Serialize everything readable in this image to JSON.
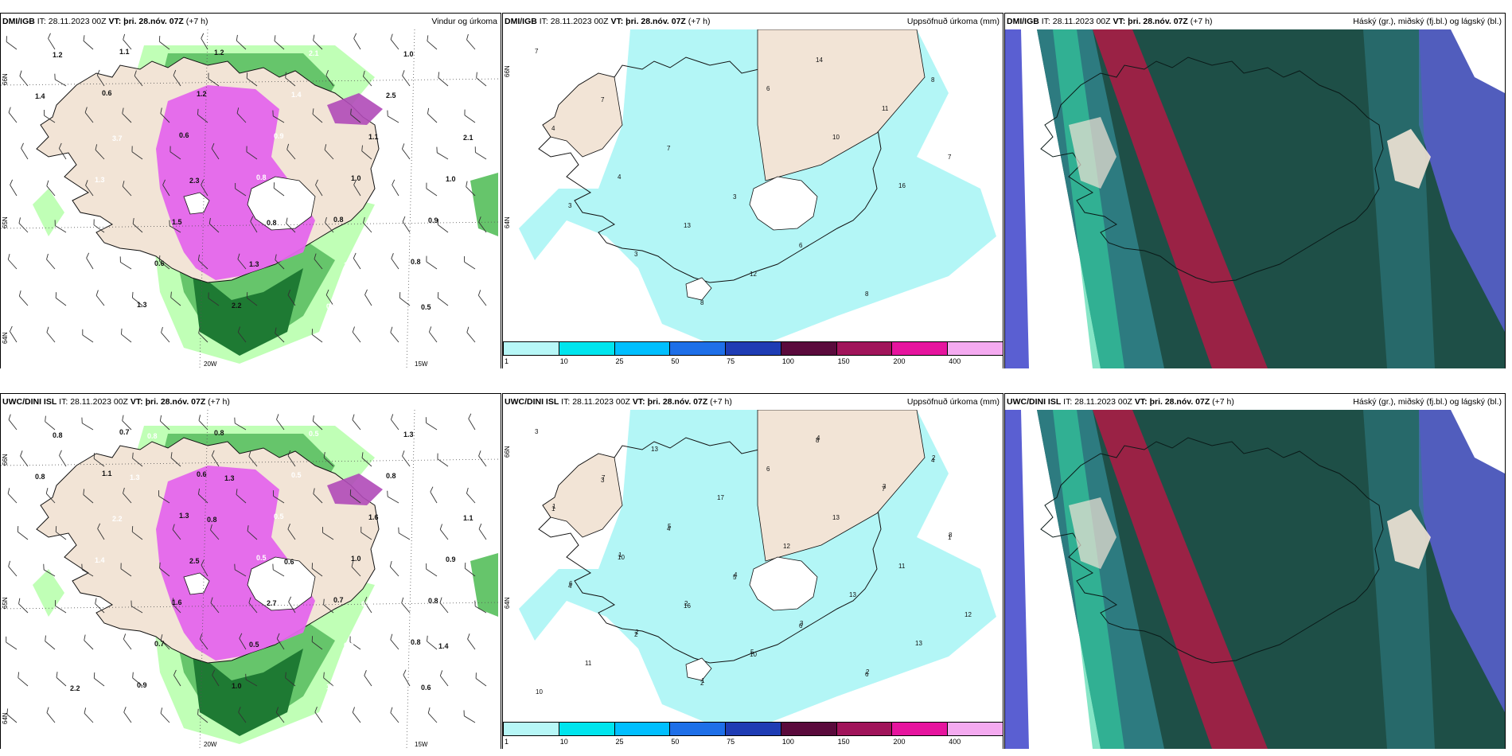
{
  "colors": {
    "land": "#f2e4d6",
    "coast": "#111111",
    "precip_light": "#c0ffb6",
    "precip_mid": "#66c56b",
    "precip_dark": "#1e7a33",
    "precip_magenta": "#e466ec",
    "accum_fill": "#b3f6f6",
    "cloud_dark": "#1e4f47",
    "cloud_teal": "#2f7f86",
    "cloud_red": "#b01a45",
    "cloud_blue": "#5a5fd2",
    "cloud_green": "#33d4a0"
  },
  "panels": [
    {
      "source": "DMI/IGB",
      "it_label": "IT:",
      "it_value": "28.11.2023 00Z",
      "vt_label": "VT:",
      "vt_value": "þri. 28.nóv. 07Z",
      "lead": "(+7 h)",
      "title_right": "Vindur og úrkoma",
      "type": "wind",
      "lat_labels": [
        "66N",
        "65N",
        "64N"
      ],
      "lon_labels": [
        "20W",
        "15W"
      ],
      "values": [
        "0.7",
        "0.6",
        "0.6",
        "0.8",
        "0.8",
        "0.8",
        "1.1",
        "1.1",
        "1.2",
        "0.9",
        "1.0",
        "0.9",
        "0.9",
        "1.3",
        "1.2",
        "1.4",
        "1.1",
        "1.0",
        "0.8",
        "0.6",
        "2.2",
        "2.1",
        "2.5",
        "2.1",
        "1.3",
        "1.5",
        "1.3",
        "0.9",
        "1.0",
        "1.4",
        "3.7",
        "2.3",
        "0.8",
        "1.2",
        "0.5",
        "1.2"
      ]
    },
    {
      "source": "DMI/IGB",
      "it_label": "IT:",
      "it_value": "28.11.2023 00Z",
      "vt_label": "VT:",
      "vt_value": "þri. 28.nóv. 07Z",
      "lead": "(+7 h)",
      "title_right": "Uppsöfnuð úrkoma (mm)",
      "type": "accum",
      "lat_labels": [
        "66N",
        "64N"
      ],
      "values": [
        "7",
        "7",
        "7",
        "3",
        "6",
        "8",
        "8",
        "4",
        "4",
        "13",
        "12",
        "14",
        "11",
        "7",
        "3",
        "3",
        "8",
        "6",
        "10",
        "16"
      ],
      "colorbar": {
        "colors": [
          "#b7f7f7",
          "#00e5ee",
          "#00bfff",
          "#1e6fe8",
          "#1e3cb4",
          "#5a0a3c",
          "#a0145a",
          "#e6149e",
          "#f4aaf0"
        ],
        "ticks": [
          "1",
          "10",
          "25",
          "50",
          "75",
          "100",
          "150",
          "200",
          "400"
        ]
      }
    },
    {
      "source": "DMI/IGB",
      "it_label": "IT:",
      "it_value": "28.11.2023 00Z",
      "vt_label": "VT:",
      "vt_value": "þri. 28.nóv. 07Z",
      "lead": "(+7 h)",
      "title_right": "Háský (gr.), miðský (fj.bl.) og lágský (bl.)",
      "type": "cloud"
    },
    {
      "source": "UWC/DINI ISL",
      "it_label": "IT:",
      "it_value": "28.11.2023 00Z",
      "vt_label": "VT:",
      "vt_value": "þri. 28.nóv. 07Z",
      "lead": "(+7 h)",
      "title_right": "",
      "type": "wind",
      "lat_labels": [
        "66N",
        "65N",
        "64N"
      ],
      "lon_labels": [
        "20W",
        "15W"
      ],
      "values": [
        "0.8",
        "1.1",
        "1.3",
        "0.5",
        "0.7",
        "0.8",
        "0.9",
        "0.7",
        "0.6",
        "0.5",
        "1.0",
        "0.8",
        "0.6",
        "0.9",
        "0.8",
        "0.5",
        "1.6",
        "0.9",
        "1.3",
        "0.7",
        "1.0",
        "0.5",
        "0.8",
        "1.1",
        "1.4",
        "1.6",
        "0.5",
        "1.2",
        "1.3",
        "0.8",
        "2.2",
        "2.5",
        "2.7",
        "0.9",
        "0.6",
        "0.8",
        "1.3",
        "0.8",
        "0.6",
        "0.6",
        "1.4",
        "2.2",
        "0.8",
        "1.3"
      ]
    },
    {
      "source": "UWC/DINI ISL",
      "it_label": "IT:",
      "it_value": "28.11.2023 00Z",
      "vt_label": "VT:",
      "vt_value": "þri. 28.nóv. 07Z",
      "lead": "(+7 h)",
      "title_right": "Uppsöfnuð úrkoma (mm)",
      "type": "accum",
      "lat_labels": [
        "66N",
        "64N"
      ],
      "values": [
        "3",
        "3",
        "4",
        "5",
        "6",
        "6",
        "4",
        "1",
        "10",
        "16",
        "10",
        "8",
        "7",
        "1",
        "4",
        "2",
        "2",
        "6",
        "13",
        "11",
        "12",
        "11",
        "13",
        "17",
        "12",
        "13",
        "13",
        "10",
        "7",
        "5",
        "4",
        "3",
        "2",
        "2",
        "1",
        "1",
        "2",
        "5",
        "4",
        "3",
        "8",
        "6",
        "2",
        "1"
      ],
      "colorbar": {
        "colors": [
          "#b7f7f7",
          "#00e5ee",
          "#00bfff",
          "#1e6fe8",
          "#1e3cb4",
          "#5a0a3c",
          "#a0145a",
          "#e6149e",
          "#f4aaf0"
        ],
        "ticks": [
          "1",
          "10",
          "25",
          "50",
          "75",
          "100",
          "150",
          "200",
          "400"
        ]
      }
    },
    {
      "source": "UWC/DINI ISL",
      "it_label": "IT:",
      "it_value": "28.11.2023 00Z",
      "vt_label": "VT:",
      "vt_value": "þri. 28.nóv. 07Z",
      "lead": "(+7 h)",
      "title_right": "Háský (gr.), miðský (fj.bl.) og lágský (bl.)",
      "type": "cloud"
    }
  ]
}
